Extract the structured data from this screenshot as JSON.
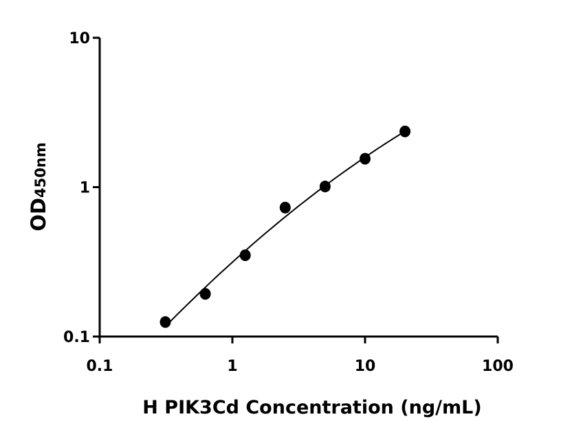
{
  "chart_data": {
    "type": "scatter",
    "xlabel": "H PIK3Cd Concentration (ng/mL)",
    "ylabel_main": "OD",
    "ylabel_sub": "450nm",
    "xscale": "log",
    "yscale": "log",
    "xlim": [
      0.1,
      100
    ],
    "ylim": [
      0.1,
      10
    ],
    "xticks": [
      "0.1",
      "1",
      "10",
      "100"
    ],
    "yticks": [
      "0.1",
      "1",
      "10"
    ],
    "grid": false,
    "fit_curve": true,
    "points": [
      {
        "x": 0.3125,
        "y": 0.125
      },
      {
        "x": 0.625,
        "y": 0.193
      },
      {
        "x": 1.25,
        "y": 0.35
      },
      {
        "x": 2.5,
        "y": 0.73
      },
      {
        "x": 5,
        "y": 1.01
      },
      {
        "x": 10,
        "y": 1.55
      },
      {
        "x": 20,
        "y": 2.36
      }
    ],
    "colors": {
      "marker": "#000000",
      "line": "#000000"
    }
  }
}
